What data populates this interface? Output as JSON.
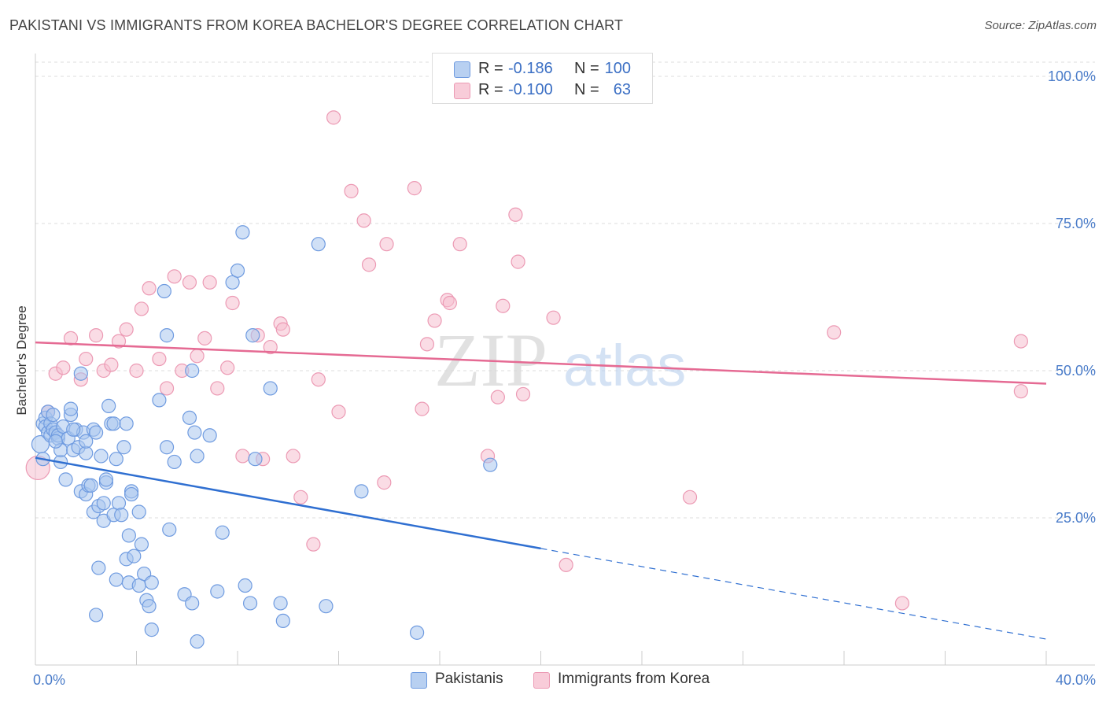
{
  "header": {
    "title": "PAKISTANI VS IMMIGRANTS FROM KOREA BACHELOR'S DEGREE CORRELATION CHART",
    "source": "Source: ZipAtlas.com"
  },
  "watermark": {
    "zip": "ZIP",
    "atlas": "atlas"
  },
  "legend": {
    "rows": [
      {
        "r_label": "R =",
        "r_value": "-0.186",
        "n_label": "N =",
        "n_value": "100"
      },
      {
        "r_label": "R =",
        "r_value": "-0.100",
        "n_label": "N =",
        "n_value": "63"
      }
    ]
  },
  "bottom_legend": {
    "series_a": "Pakistanis",
    "series_b": "Immigrants from Korea"
  },
  "colors": {
    "blue_fill": "#a9c6ef",
    "blue_stroke": "#6f9be0",
    "blue_line": "#2f6fd1",
    "pink_fill": "#f6bfd0",
    "pink_stroke": "#ec9ab4",
    "pink_line": "#e56a93",
    "tick_text": "#4a7cc9",
    "grid": "#dddddd"
  },
  "chart_data": {
    "type": "scatter",
    "title": "PAKISTANI VS IMMIGRANTS FROM KOREA BACHELOR'S DEGREE CORRELATION CHART",
    "xlabel": "",
    "ylabel": "Bachelor's Degree",
    "xlim": [
      0,
      40
    ],
    "ylim": [
      0,
      105
    ],
    "x_tick_labels": [
      "0.0%",
      "40.0%"
    ],
    "y_ticks": [
      25,
      50,
      75,
      100
    ],
    "y_tick_labels": [
      "25.0%",
      "50.0%",
      "75.0%",
      "100.0%"
    ],
    "grid": true,
    "legend_position": "top-center",
    "series": [
      {
        "name": "Pakistanis",
        "r": -0.186,
        "n": 100,
        "trend": {
          "x0": 0,
          "y0": 35.2,
          "x1": 20,
          "y1": 19.8,
          "dashed_to_x": 40,
          "dashed_y": 4.4
        },
        "points": [
          [
            0.2,
            37.5
          ],
          [
            0.3,
            35.0
          ],
          [
            0.3,
            41.0
          ],
          [
            0.4,
            42.0
          ],
          [
            0.4,
            40.5
          ],
          [
            0.5,
            43.0
          ],
          [
            0.5,
            39.5
          ],
          [
            0.6,
            41.0
          ],
          [
            0.6,
            39.0
          ],
          [
            0.7,
            42.5
          ],
          [
            0.7,
            40.0
          ],
          [
            0.8,
            39.5
          ],
          [
            0.9,
            38.5
          ],
          [
            0.9,
            39.0
          ],
          [
            1.0,
            34.5
          ],
          [
            1.0,
            36.5
          ],
          [
            1.1,
            40.5
          ],
          [
            1.2,
            31.5
          ],
          [
            1.3,
            38.5
          ],
          [
            1.4,
            42.5
          ],
          [
            1.4,
            43.5
          ],
          [
            1.5,
            36.5
          ],
          [
            1.6,
            40.0
          ],
          [
            1.7,
            37.0
          ],
          [
            1.8,
            49.5
          ],
          [
            1.8,
            29.5
          ],
          [
            1.9,
            39.5
          ],
          [
            2.0,
            29.0
          ],
          [
            2.1,
            30.5
          ],
          [
            2.2,
            30.5
          ],
          [
            2.3,
            40.0
          ],
          [
            2.3,
            26.0
          ],
          [
            2.4,
            8.5
          ],
          [
            2.4,
            39.5
          ],
          [
            2.5,
            27.0
          ],
          [
            2.5,
            16.5
          ],
          [
            2.6,
            35.5
          ],
          [
            2.7,
            27.5
          ],
          [
            2.7,
            24.5
          ],
          [
            2.8,
            31.0
          ],
          [
            2.8,
            31.5
          ],
          [
            2.9,
            44.0
          ],
          [
            3.0,
            41.0
          ],
          [
            3.1,
            41.0
          ],
          [
            3.1,
            25.5
          ],
          [
            3.2,
            35.0
          ],
          [
            3.2,
            14.5
          ],
          [
            3.3,
            27.5
          ],
          [
            3.4,
            25.5
          ],
          [
            3.5,
            37.0
          ],
          [
            3.6,
            18.0
          ],
          [
            3.6,
            41.0
          ],
          [
            3.7,
            22.0
          ],
          [
            3.7,
            14.0
          ],
          [
            3.8,
            29.5
          ],
          [
            3.8,
            29.0
          ],
          [
            3.9,
            18.5
          ],
          [
            4.1,
            26.0
          ],
          [
            4.1,
            13.5
          ],
          [
            4.2,
            20.5
          ],
          [
            4.3,
            15.5
          ],
          [
            4.4,
            11.0
          ],
          [
            4.5,
            10.0
          ],
          [
            4.6,
            14.0
          ],
          [
            4.6,
            6.0
          ],
          [
            4.9,
            45.0
          ],
          [
            5.1,
            63.5
          ],
          [
            5.2,
            37.0
          ],
          [
            5.2,
            56.0
          ],
          [
            5.3,
            23.0
          ],
          [
            5.5,
            34.5
          ],
          [
            5.9,
            12.0
          ],
          [
            6.1,
            42.0
          ],
          [
            6.2,
            50.0
          ],
          [
            6.2,
            10.5
          ],
          [
            6.3,
            39.5
          ],
          [
            6.4,
            4.0
          ],
          [
            6.4,
            35.5
          ],
          [
            6.9,
            39.0
          ],
          [
            7.2,
            12.5
          ],
          [
            7.4,
            22.5
          ],
          [
            7.8,
            65.0
          ],
          [
            8.2,
            73.5
          ],
          [
            8.3,
            13.5
          ],
          [
            8.5,
            10.5
          ],
          [
            8.6,
            56.0
          ],
          [
            8.7,
            35.0
          ],
          [
            9.3,
            47.0
          ],
          [
            9.7,
            10.5
          ],
          [
            9.8,
            7.5
          ],
          [
            11.2,
            71.5
          ],
          [
            11.5,
            10.0
          ],
          [
            12.9,
            29.5
          ],
          [
            15.1,
            5.5
          ],
          [
            18.0,
            34.0
          ],
          [
            8.0,
            67.0
          ],
          [
            2.0,
            36.0
          ],
          [
            0.8,
            38.0
          ],
          [
            1.5,
            40.0
          ],
          [
            2.0,
            38.0
          ]
        ]
      },
      {
        "name": "Immigrants from Korea",
        "r": -0.1,
        "n": 63,
        "trend": {
          "x0": 0,
          "y0": 54.8,
          "x1": 40,
          "y1": 47.8
        },
        "points": [
          [
            0.1,
            33.5
          ],
          [
            0.5,
            43.0
          ],
          [
            0.8,
            49.5
          ],
          [
            1.1,
            50.5
          ],
          [
            1.4,
            55.5
          ],
          [
            1.8,
            48.5
          ],
          [
            2.0,
            52.0
          ],
          [
            2.4,
            56.0
          ],
          [
            2.7,
            50.0
          ],
          [
            3.0,
            51.0
          ],
          [
            3.3,
            55.0
          ],
          [
            3.6,
            57.0
          ],
          [
            4.0,
            50.0
          ],
          [
            4.2,
            60.5
          ],
          [
            4.5,
            64.0
          ],
          [
            4.9,
            52.0
          ],
          [
            5.2,
            47.0
          ],
          [
            5.5,
            66.0
          ],
          [
            5.8,
            50.0
          ],
          [
            6.1,
            65.0
          ],
          [
            6.4,
            52.5
          ],
          [
            6.7,
            55.5
          ],
          [
            6.9,
            65.0
          ],
          [
            7.2,
            47.0
          ],
          [
            7.6,
            50.5
          ],
          [
            7.8,
            61.5
          ],
          [
            8.2,
            35.5
          ],
          [
            8.8,
            56.0
          ],
          [
            9.0,
            35.0
          ],
          [
            9.3,
            54.0
          ],
          [
            9.7,
            58.0
          ],
          [
            9.8,
            57.0
          ],
          [
            10.2,
            35.5
          ],
          [
            10.5,
            28.5
          ],
          [
            11.0,
            20.5
          ],
          [
            11.2,
            48.5
          ],
          [
            11.8,
            93.0
          ],
          [
            12.0,
            43.0
          ],
          [
            12.5,
            80.5
          ],
          [
            13.0,
            75.5
          ],
          [
            13.2,
            68.0
          ],
          [
            13.8,
            31.0
          ],
          [
            13.9,
            71.5
          ],
          [
            15.0,
            81.0
          ],
          [
            15.3,
            43.5
          ],
          [
            15.5,
            54.5
          ],
          [
            15.8,
            58.5
          ],
          [
            16.3,
            62.0
          ],
          [
            16.4,
            61.5
          ],
          [
            16.8,
            71.5
          ],
          [
            17.9,
            35.5
          ],
          [
            18.3,
            45.5
          ],
          [
            18.5,
            61.0
          ],
          [
            19.0,
            76.5
          ],
          [
            19.1,
            68.5
          ],
          [
            19.3,
            46.0
          ],
          [
            20.5,
            59.0
          ],
          [
            21.0,
            17.0
          ],
          [
            25.9,
            28.5
          ],
          [
            31.6,
            56.5
          ],
          [
            34.3,
            10.5
          ],
          [
            39.0,
            55.0
          ],
          [
            39.0,
            46.5
          ]
        ]
      }
    ]
  }
}
